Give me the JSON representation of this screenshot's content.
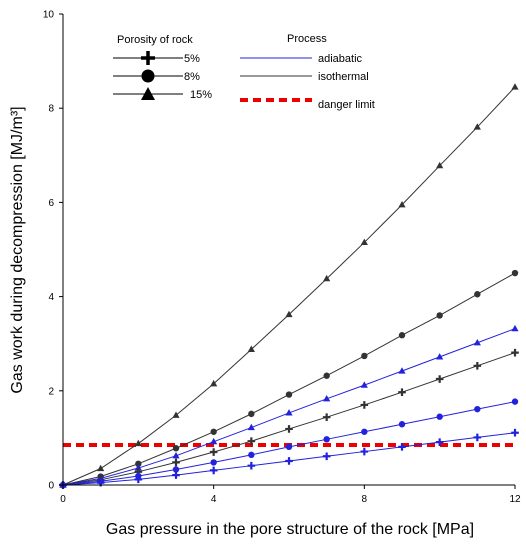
{
  "chart_data": {
    "type": "line",
    "xlabel": "Gas pressure in the pore structure of the rock [MPa]",
    "ylabel": "Gas work during decompression [MJ/m³]",
    "xlim": [
      0,
      12
    ],
    "ylim": [
      0,
      10
    ],
    "xticks": [
      "0",
      "4",
      "8",
      "12"
    ],
    "yticks": [
      "0",
      "2",
      "4",
      "6",
      "8",
      "10"
    ],
    "grid": false,
    "legend": {
      "porosity_title": "Porosity of rock",
      "porosity_items": [
        {
          "label": "5%",
          "marker": "plus"
        },
        {
          "label": "8%",
          "marker": "circle"
        },
        {
          "label": "15%",
          "marker": "triangle"
        }
      ],
      "process_title": "Process",
      "process_items": [
        {
          "label": "adiabatic",
          "color": "#2222dd",
          "style": "solid"
        },
        {
          "label": "isothermal",
          "color": "#333333",
          "style": "solid"
        },
        {
          "label": "danger limit",
          "color": "#ee0000",
          "style": "dashed"
        }
      ]
    },
    "x": [
      0,
      1,
      2,
      3,
      4,
      5,
      6,
      7,
      8,
      9,
      10,
      11,
      12
    ],
    "series": [
      {
        "process": "isothermal",
        "marker": "triangle",
        "color": "#333333",
        "values": [
          0,
          0.35,
          0.88,
          1.48,
          2.15,
          2.88,
          3.62,
          4.38,
          5.15,
          5.95,
          6.78,
          7.6,
          8.45
        ]
      },
      {
        "process": "isothermal",
        "marker": "circle",
        "color": "#333333",
        "values": [
          0,
          0.18,
          0.45,
          0.78,
          1.13,
          1.51,
          1.92,
          2.32,
          2.74,
          3.18,
          3.6,
          4.05,
          4.5
        ]
      },
      {
        "process": "adiabatic",
        "marker": "triangle",
        "color": "#2222dd",
        "values": [
          0,
          0.14,
          0.36,
          0.62,
          0.92,
          1.22,
          1.53,
          1.83,
          2.12,
          2.42,
          2.72,
          3.02,
          3.32
        ]
      },
      {
        "process": "isothermal",
        "marker": "plus",
        "color": "#333333",
        "values": [
          0,
          0.11,
          0.28,
          0.48,
          0.7,
          0.93,
          1.19,
          1.44,
          1.7,
          1.97,
          2.25,
          2.53,
          2.81
        ]
      },
      {
        "process": "adiabatic",
        "marker": "circle",
        "color": "#2222dd",
        "values": [
          0,
          0.08,
          0.19,
          0.33,
          0.48,
          0.64,
          0.81,
          0.97,
          1.13,
          1.29,
          1.45,
          1.61,
          1.77
        ]
      },
      {
        "process": "adiabatic",
        "marker": "plus",
        "color": "#2222dd",
        "values": [
          0,
          0.05,
          0.12,
          0.21,
          0.31,
          0.41,
          0.51,
          0.61,
          0.71,
          0.81,
          0.91,
          1.01,
          1.11
        ]
      }
    ],
    "danger_limit": 0.85
  }
}
